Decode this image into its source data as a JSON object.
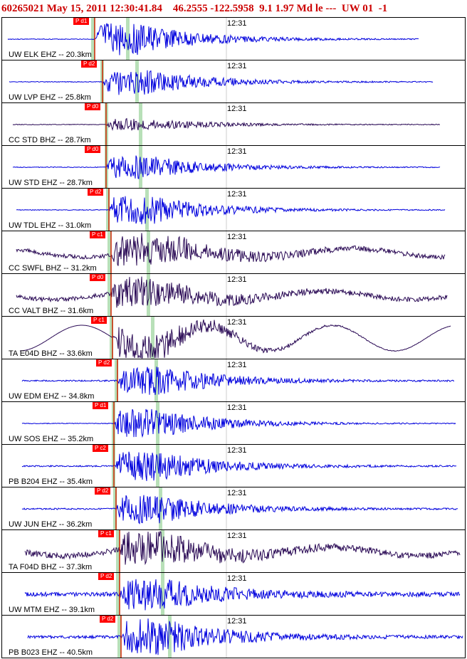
{
  "header": {
    "title": "60265021 May 15, 2011 12:30:41.84    46.2555 -122.5958  9.1 1.97 Md le ---  UW 01  -1"
  },
  "colors": {
    "pick_tag": "#ff0000",
    "pick_line": "#cc2200",
    "phase_band": "#b8e0b8",
    "trace_blue": "#0000dd",
    "trace_purple": "#2a0a55",
    "grid_tick": "#000000"
  },
  "panels": [
    {
      "station": "UW ELK EHZ -- 20.3km",
      "pick": "P d1",
      "time": "12:31",
      "trace": "blue"
    },
    {
      "station": "UW LVP EHZ -- 25.8km",
      "pick": "P d2",
      "time": "12:31",
      "trace": "blue"
    },
    {
      "station": "CC STD BHZ -- 28.7km",
      "pick": "P d0",
      "time": "12:31",
      "trace": "purple"
    },
    {
      "station": "UW STD EHZ -- 28.7km",
      "pick": "P d0",
      "time": "12:31",
      "trace": "blue"
    },
    {
      "station": "UW TDL EHZ -- 31.0km",
      "pick": "P d2",
      "time": "12:31",
      "trace": "blue"
    },
    {
      "station": "CC SWFL BHZ -- 31.2km",
      "pick": "P c1",
      "time": "12:31",
      "trace": "purple"
    },
    {
      "station": "CC VALT BHZ -- 31.6km",
      "pick": "P d0",
      "time": "12:31",
      "trace": "purple"
    },
    {
      "station": "TA E04D BHZ -- 33.6km",
      "pick": "P c1",
      "time": "12:31",
      "trace": "purple"
    },
    {
      "station": "UW EDM EHZ -- 34.8km",
      "pick": "P d2",
      "time": "12:31",
      "trace": "blue"
    },
    {
      "station": "UW SOS EHZ -- 35.2km",
      "pick": "P d1",
      "time": "12:31",
      "trace": "blue"
    },
    {
      "station": "PB B204 EHZ -- 35.4km",
      "pick": "P c2",
      "time": "12:31",
      "trace": "blue"
    },
    {
      "station": "UW JUN EHZ -- 36.2km",
      "pick": "P d2",
      "time": "12:31",
      "trace": "blue"
    },
    {
      "station": "TA F04D BHZ -- 37.3km",
      "pick": "P c1",
      "time": "12:31",
      "trace": "purple"
    },
    {
      "station": "UW MTM EHZ -- 39.1km",
      "pick": "P d2",
      "time": "12:31",
      "trace": "blue"
    },
    {
      "station": "PB B023 EHZ -- 40.5km",
      "pick": "P d2",
      "time": "12:31",
      "trace": "blue"
    }
  ]
}
